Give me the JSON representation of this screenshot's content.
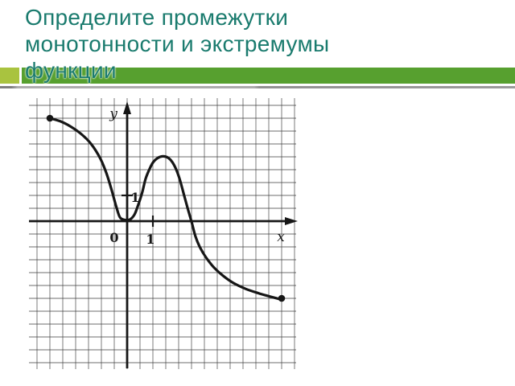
{
  "title": {
    "lines": [
      "Определите промежутки",
      "монотонности и экстремумы",
      "функции"
    ]
  },
  "colors": {
    "title_text": "#1a7b6e",
    "bar_main": "#57a02f",
    "bar_accent": "#a9c33f",
    "divider": "#9b9b9b",
    "ink": "#161616",
    "grid_line": "#3d3d3d"
  },
  "chart_data": {
    "type": "line",
    "title": "",
    "xlabel": "x",
    "ylabel": "y",
    "origin_label": "0",
    "x_tick_label": "1",
    "y_tick_label": "1",
    "x_tick_value": 1,
    "y_tick_value": 1,
    "xlim": [
      -4,
      6.7
    ],
    "ylim": [
      -5.8,
      5.0
    ],
    "grid": true,
    "units_per_grid_cell": 0.5,
    "curve_points": [
      [
        -3.0,
        4.0
      ],
      [
        -2.6,
        3.88
      ],
      [
        -2.2,
        3.68
      ],
      [
        -1.8,
        3.4
      ],
      [
        -1.4,
        3.0
      ],
      [
        -1.05,
        2.45
      ],
      [
        -0.8,
        1.85
      ],
      [
        -0.6,
        1.2
      ],
      [
        -0.42,
        0.55
      ],
      [
        -0.28,
        0.15
      ],
      [
        -0.1,
        0.05
      ],
      [
        0.1,
        0.06
      ],
      [
        0.28,
        0.25
      ],
      [
        0.42,
        0.6
      ],
      [
        0.58,
        1.1
      ],
      [
        0.72,
        1.65
      ],
      [
        0.88,
        2.05
      ],
      [
        1.02,
        2.3
      ],
      [
        1.18,
        2.45
      ],
      [
        1.38,
        2.52
      ],
      [
        1.58,
        2.47
      ],
      [
        1.75,
        2.3
      ],
      [
        1.9,
        2.02
      ],
      [
        2.05,
        1.6
      ],
      [
        2.2,
        1.05
      ],
      [
        2.35,
        0.5
      ],
      [
        2.5,
        -0.02
      ],
      [
        2.65,
        -0.58
      ],
      [
        2.82,
        -1.0
      ],
      [
        3.07,
        -1.42
      ],
      [
        3.37,
        -1.8
      ],
      [
        3.72,
        -2.12
      ],
      [
        4.12,
        -2.4
      ],
      [
        4.6,
        -2.63
      ],
      [
        5.1,
        -2.8
      ],
      [
        5.55,
        -2.93
      ],
      [
        6.0,
        -3.05
      ]
    ],
    "endpoints": {
      "start": [
        -3,
        4
      ],
      "end": [
        6,
        -3
      ]
    },
    "features": {
      "local_min": [
        0,
        0
      ],
      "local_max": [
        1.5,
        2.5
      ],
      "x_axis_crossing": 2.5
    }
  }
}
